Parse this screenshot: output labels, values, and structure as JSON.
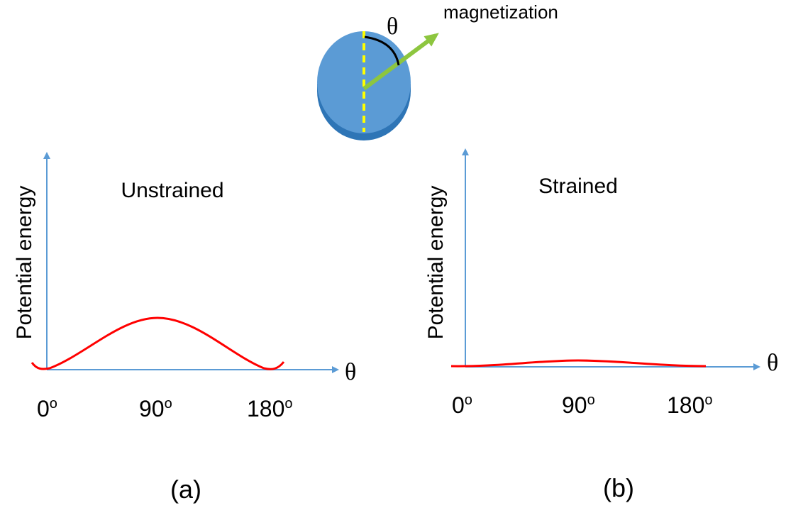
{
  "magnet": {
    "angle_label": "θ",
    "arrow_label": "magnetization"
  },
  "panels": [
    {
      "title": "Unstrained",
      "y_label": "Potential energy",
      "x_label": "θ",
      "ticks": [
        {
          "text": "0",
          "sup": "o"
        },
        {
          "text": "90",
          "sup": "o"
        },
        {
          "text": "180",
          "sup": "o"
        }
      ],
      "caption": "(a)"
    },
    {
      "title": "Strained",
      "y_label": "Potential energy",
      "x_label": "θ",
      "ticks": [
        {
          "text": "0",
          "sup": "o"
        },
        {
          "text": "90",
          "sup": "o"
        },
        {
          "text": "180",
          "sup": "o"
        }
      ],
      "caption": "(b)"
    }
  ]
}
